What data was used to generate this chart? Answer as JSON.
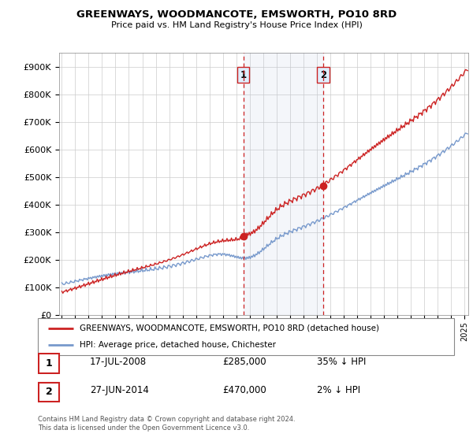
{
  "title": "GREENWAYS, WOODMANCOTE, EMSWORTH, PO10 8RD",
  "subtitle": "Price paid vs. HM Land Registry's House Price Index (HPI)",
  "ylim": [
    0,
    950000
  ],
  "xlim_start": 1994.8,
  "xlim_end": 2025.3,
  "hpi_color": "#7799cc",
  "price_color": "#cc2222",
  "annotation_box_color": "#ddeeff",
  "annotation_border_color": "#cc2222",
  "transaction1_x": 2008.54,
  "transaction1_y": 285000,
  "transaction2_x": 2014.49,
  "transaction2_y": 470000,
  "legend_line1": "GREENWAYS, WOODMANCOTE, EMSWORTH, PO10 8RD (detached house)",
  "legend_line2": "HPI: Average price, detached house, Chichester",
  "table_row1": [
    "1",
    "17-JUL-2008",
    "£285,000",
    "35% ↓ HPI"
  ],
  "table_row2": [
    "2",
    "27-JUN-2014",
    "£470,000",
    "2% ↓ HPI"
  ],
  "footer": "Contains HM Land Registry data © Crown copyright and database right 2024.\nThis data is licensed under the Open Government Licence v3.0.",
  "background_color": "#ffffff",
  "grid_color": "#cccccc"
}
